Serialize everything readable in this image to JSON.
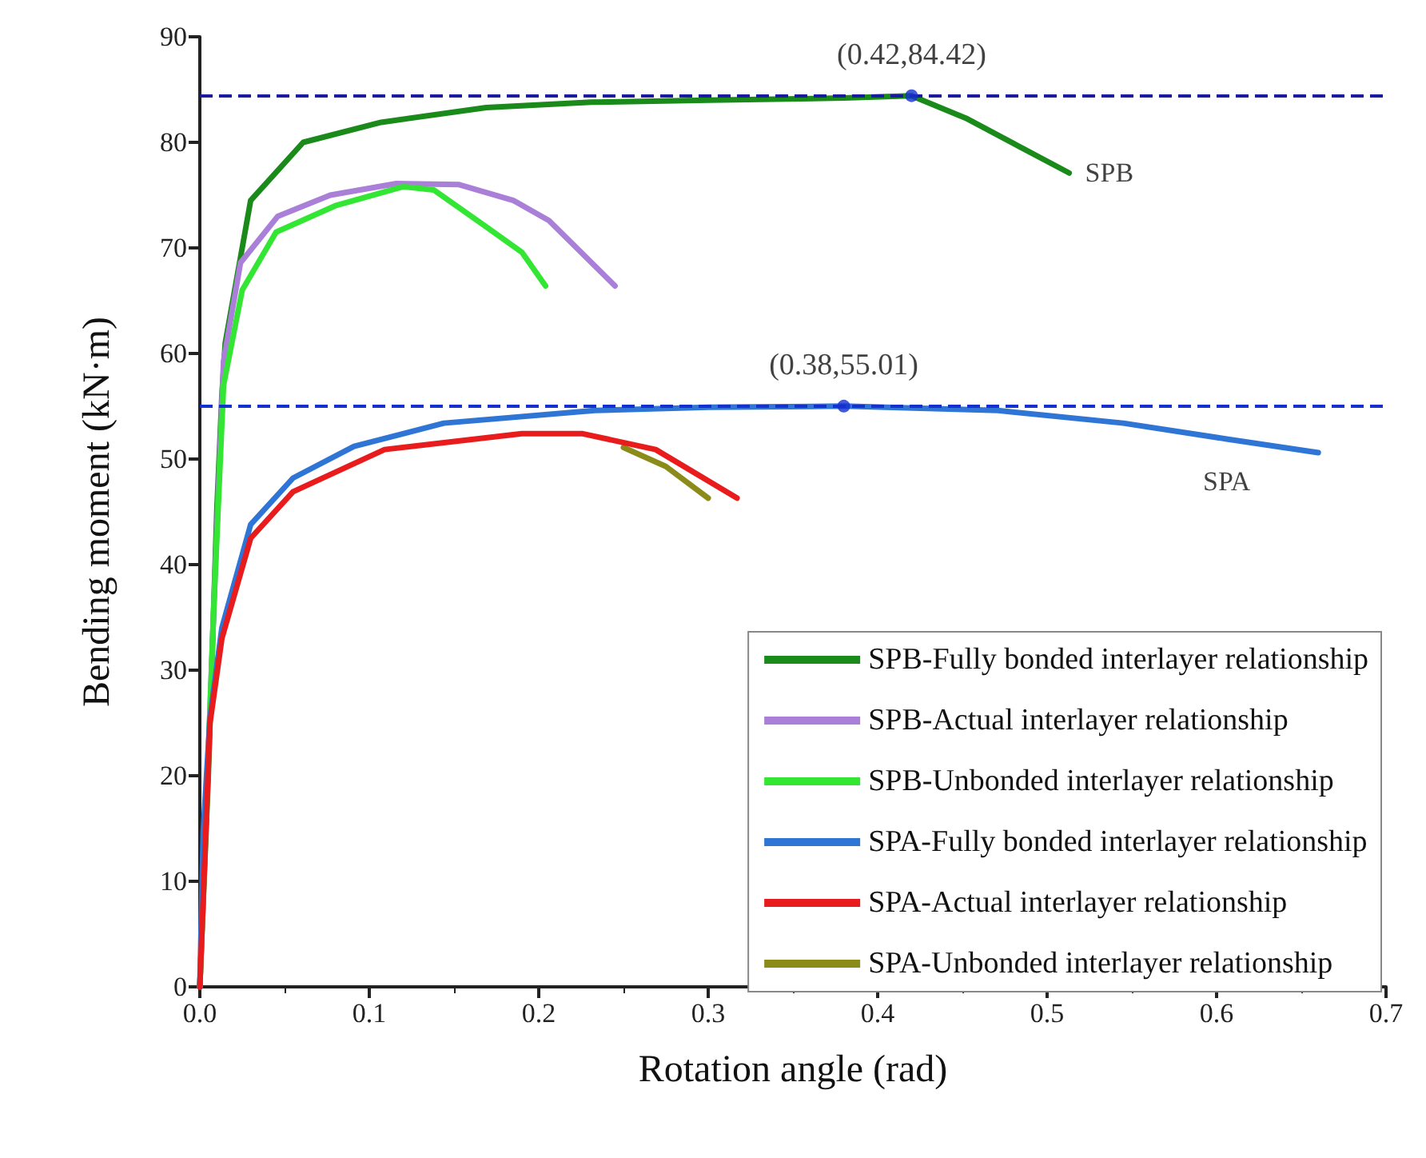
{
  "chart_data": {
    "type": "line",
    "xlabel": "Rotation angle (rad)",
    "ylabel": "Bending moment (kN·m)",
    "xlim": [
      0,
      0.7
    ],
    "xticks": [
      {
        "value": 0,
        "label": "0.0"
      },
      0.1,
      0.2,
      0.3,
      0.4,
      0.5,
      0.6,
      0.7
    ],
    "ylim": [
      0,
      90
    ],
    "yticks": [
      0,
      10,
      20,
      30,
      40,
      50,
      60,
      70,
      80,
      90
    ],
    "grid": false,
    "legend": "bottom right",
    "marker": "none",
    "line_style": "solid",
    "series": [
      {
        "name": "SPB-Fully bonded interlayer relationship",
        "color": "#1a8a1a",
        "x": [
          0,
          0.005,
          0.01,
          0.013,
          0.015,
          0.03,
          0.061,
          0.107,
          0.169,
          0.231,
          0.3,
          0.38,
          0.42,
          0.452,
          0.513
        ],
        "values": [
          0,
          20,
          45,
          56,
          61,
          74.5,
          80,
          81.9,
          83.3,
          83.8,
          84,
          84.2,
          84.42,
          82.3,
          77.1
        ]
      },
      {
        "name": "SPB-Actual interlayer relationship",
        "color": "#a97fd8",
        "x": [
          0,
          0.008,
          0.014,
          0.024,
          0.046,
          0.077,
          0.116,
          0.153,
          0.185,
          0.206,
          0.245
        ],
        "values": [
          0,
          35,
          59.3,
          68.6,
          73,
          75,
          76.1,
          76,
          74.5,
          72.6,
          66.4
        ]
      },
      {
        "name": "SPB-Unbonded interlayer relationship",
        "color": "#33e633",
        "x": [
          0,
          0.008,
          0.014,
          0.025,
          0.045,
          0.08,
          0.12,
          0.138,
          0.169,
          0.19,
          0.204
        ],
        "values": [
          0,
          35,
          57,
          66,
          71.5,
          74,
          75.8,
          75.5,
          72,
          69.6,
          66.4
        ]
      },
      {
        "name": "SPA-Fully bonded interlayer relationship",
        "color": "#2e75d6",
        "x": [
          0,
          0.002,
          0.006,
          0.013,
          0.03,
          0.055,
          0.091,
          0.144,
          0.233,
          0.3,
          0.38,
          0.471,
          0.545,
          0.606,
          0.66
        ],
        "values": [
          0,
          14.7,
          25.5,
          34,
          43.8,
          48.2,
          51.2,
          53.4,
          54.6,
          54.9,
          55.01,
          54.6,
          53.4,
          51.9,
          50.6
        ]
      },
      {
        "name": "SPA-Actual interlayer relationship",
        "color": "#e81c1c",
        "x": [
          0,
          0.006,
          0.013,
          0.03,
          0.055,
          0.109,
          0.19,
          0.226,
          0.269,
          0.317
        ],
        "values": [
          0,
          25,
          33,
          42.5,
          46.9,
          50.9,
          52.4,
          52.4,
          50.9,
          46.3
        ]
      },
      {
        "name": "SPA-Unbonded interlayer relationship",
        "color": "#8b8b1a",
        "x": [
          0.25,
          0.275,
          0.3
        ],
        "values": [
          51.1,
          49.3,
          46.3
        ]
      },
      {
        "type": "scatter",
        "color": "#1530d0",
        "x": [
          0.42,
          0.38
        ],
        "values": [
          84.42,
          55.01
        ],
        "marker": "circle",
        "value_labels": [
          "(0.42,84.42)",
          "(0.38,55.01)"
        ]
      }
    ],
    "ref_lines": [
      {
        "axis": "y",
        "value": 84.42,
        "color": "#1a1aa0",
        "line_style": "dashed"
      },
      {
        "axis": "y",
        "value": 55.01,
        "color": "#1530d0",
        "line_style": "dashed"
      }
    ],
    "annotations": [
      {
        "text": "SPB",
        "x": 0.513,
        "y": 77.1
      },
      {
        "text": "SPA",
        "x": 0.606,
        "y": 51.9
      }
    ]
  }
}
